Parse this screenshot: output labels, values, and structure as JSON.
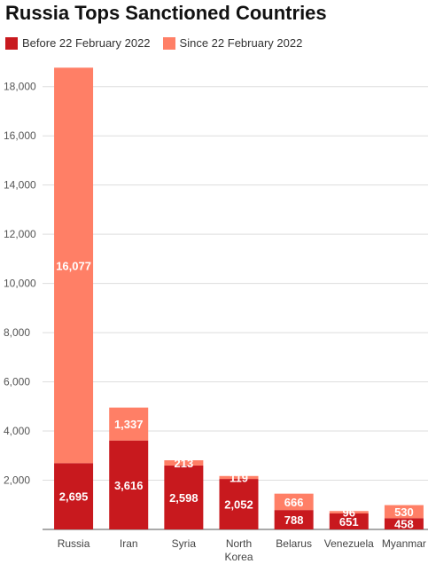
{
  "chart_data": {
    "type": "bar",
    "stacked": true,
    "title": "Russia Tops Sanctioned Countries",
    "xlabel": "",
    "ylabel": "",
    "categories": [
      [
        "Russia"
      ],
      [
        "Iran"
      ],
      [
        "Syria"
      ],
      [
        "North",
        "Korea"
      ],
      [
        "Belarus"
      ],
      [
        "Venezuela"
      ],
      [
        "Myanmar"
      ]
    ],
    "series": [
      {
        "name": "Before 22 February 2022",
        "color": "#C8191E",
        "values": [
          2695,
          3616,
          2598,
          2052,
          788,
          651,
          458
        ],
        "labels": [
          "2,695",
          "3,616",
          "2,598",
          "2,052",
          "788",
          "651",
          "458"
        ]
      },
      {
        "name": "Since 22 February 2022",
        "color": "#FF7F66",
        "values": [
          16077,
          1337,
          213,
          119,
          666,
          96,
          530
        ],
        "labels": [
          "16,077",
          "1,337",
          "213",
          "119",
          "666",
          "96",
          "530"
        ]
      }
    ],
    "ylim": [
      0,
      19000
    ],
    "yticks": [
      2000,
      4000,
      6000,
      8000,
      10000,
      12000,
      14000,
      16000,
      18000
    ],
    "ytick_labels": [
      "2,000",
      "4,000",
      "6,000",
      "8,000",
      "10,000",
      "12,000",
      "14,000",
      "16,000",
      "18,000"
    ],
    "grid": true,
    "legend_position": "top-left"
  }
}
